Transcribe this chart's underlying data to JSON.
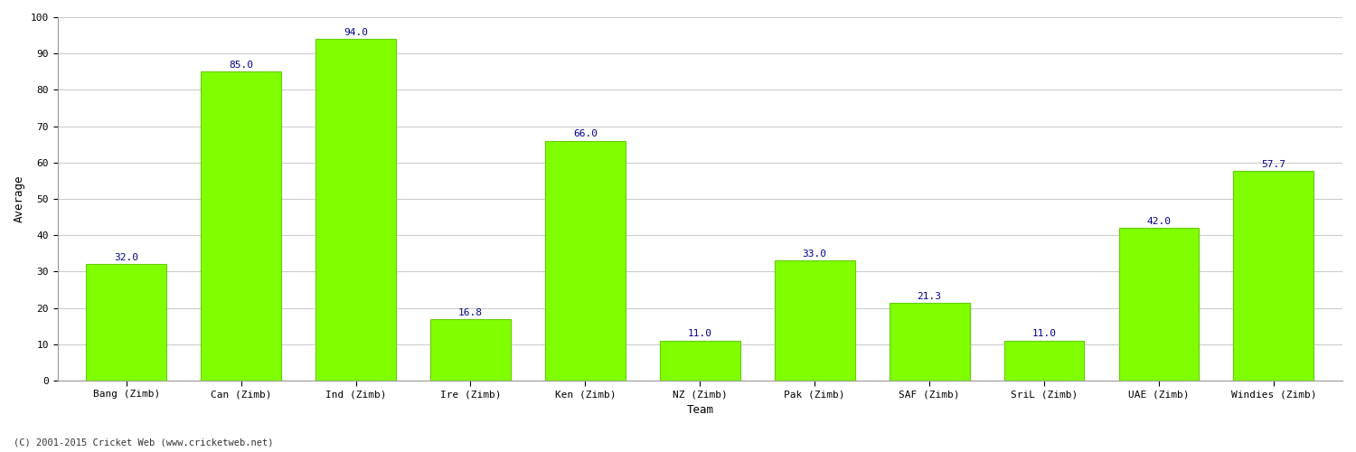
{
  "categories": [
    "Bang (Zimb)",
    "Can (Zimb)",
    "Ind (Zimb)",
    "Ire (Zimb)",
    "Ken (Zimb)",
    "NZ (Zimb)",
    "Pak (Zimb)",
    "SAF (Zimb)",
    "SriL (Zimb)",
    "UAE (Zimb)",
    "Windies (Zimb)"
  ],
  "values": [
    32.0,
    85.0,
    94.0,
    16.8,
    66.0,
    11.0,
    33.0,
    21.3,
    11.0,
    42.0,
    57.7
  ],
  "bar_color": "#7FFF00",
  "bar_edge_color": "#66CC00",
  "label_color": "#00008B",
  "xlabel": "Team",
  "ylabel": "Average",
  "ylim": [
    0,
    100
  ],
  "yticks": [
    0,
    10,
    20,
    30,
    40,
    50,
    60,
    70,
    80,
    90,
    100
  ],
  "grid_color": "#cccccc",
  "bg_color": "#ffffff",
  "fig_bg_color": "#ffffff",
  "footer_text": "(C) 2001-2015 Cricket Web (www.cricketweb.net)",
  "axis_label_fontsize": 9,
  "tick_fontsize": 8,
  "value_label_fontsize": 8
}
